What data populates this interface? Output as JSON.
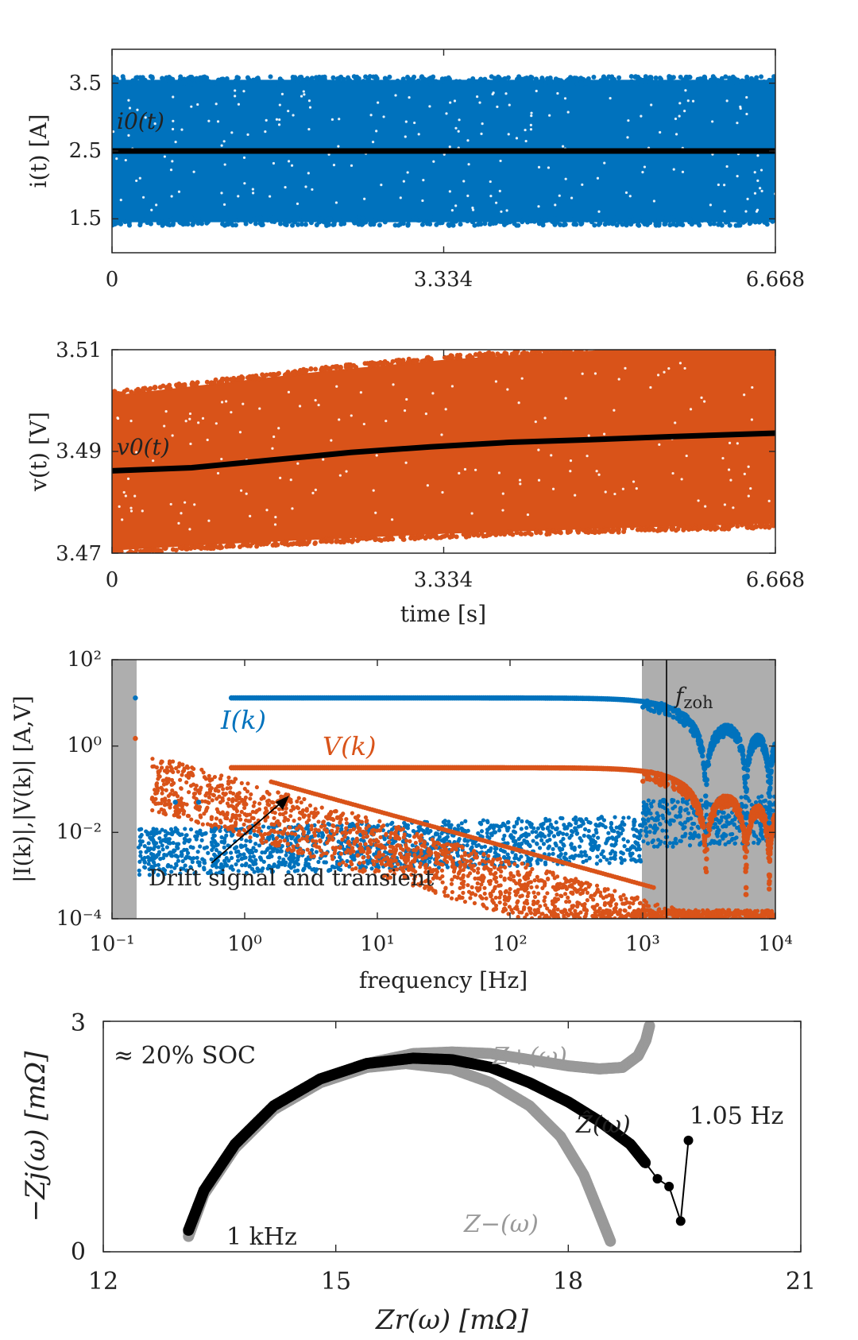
{
  "colors": {
    "current": "#0072BD",
    "voltage": "#D95319",
    "mean": "#000000",
    "bound": "#999999",
    "shade": "#9a9a9a"
  },
  "chart_data": [
    {
      "type": "scatter",
      "title": "",
      "ylabel": "i(t) [A]",
      "xlabel": "",
      "xlim": [
        0,
        6.668
      ],
      "ylim": [
        1.0,
        4.0
      ],
      "xticks": [
        "0",
        "3.334",
        "6.668"
      ],
      "yticks": [
        "1.5",
        "2.5",
        "3.5"
      ],
      "series": [
        {
          "name": "i(t)",
          "band": [
            1.4,
            3.6
          ]
        },
        {
          "name": "i0(t)",
          "value": 2.5
        }
      ],
      "annotations": [
        "i0(t)"
      ]
    },
    {
      "type": "scatter",
      "ylabel": "v(t) [V]",
      "xlabel": "time [s]",
      "xlim": [
        0,
        6.668
      ],
      "ylim": [
        3.47,
        3.51
      ],
      "xticks": [
        "0",
        "3.334",
        "6.668"
      ],
      "yticks": [
        "3.47",
        "3.49",
        "3.51"
      ],
      "series": [
        {
          "name": "v(t)",
          "lower": [
            3.4705,
            3.4718,
            3.4728,
            3.4738,
            3.4745,
            3.4752,
            3.4758
          ],
          "upper": [
            3.501,
            3.5035,
            3.506,
            3.508,
            3.5095,
            3.5105,
            3.5105
          ]
        },
        {
          "name": "v0(t)",
          "x": [
            0,
            0.8,
            1.6,
            2.4,
            3.2,
            4.0,
            4.8,
            5.6,
            6.668
          ],
          "y": [
            3.4862,
            3.4868,
            3.4883,
            3.4898,
            3.4909,
            3.4918,
            3.4923,
            3.4929,
            3.4936
          ]
        }
      ],
      "annotations": [
        "v0(t)"
      ]
    },
    {
      "type": "scatter",
      "ylabel": "|I(k)|,|V(k)| [A,V]",
      "xlabel": "frequency [Hz]",
      "xscale": "log",
      "yscale": "log",
      "xlim": [
        0.1,
        10000
      ],
      "ylim": [
        0.0001,
        100
      ],
      "xticks": [
        "10⁻¹",
        "10⁰",
        "10¹",
        "10²",
        "10³",
        "10⁴"
      ],
      "yticks": [
        "10⁻⁴",
        "10⁻²",
        "10⁰",
        "10²"
      ],
      "shaded_regions": [
        [
          0.1,
          0.15
        ],
        [
          1000,
          10000
        ]
      ],
      "vline": 1500,
      "series": [
        {
          "name": "I(k)",
          "excited_level": 13
        },
        {
          "name": "V(k)",
          "excited_level": 0.3
        }
      ],
      "labels": {
        "I": "I(k)",
        "V": "V(k)",
        "fzoh": "f",
        "fzoh_sub": "zoh"
      },
      "annotation": "Drift signal and transient"
    },
    {
      "type": "scatter",
      "xlabel": "Zr(ω) [mΩ]",
      "ylabel": "−Zj(ω) [mΩ]",
      "xlim": [
        12,
        21
      ],
      "ylim": [
        0,
        3
      ],
      "xticks": [
        "12",
        "15",
        "18",
        "21"
      ],
      "yticks": [
        "0",
        "3"
      ],
      "series": [
        {
          "name": "Z+(ω)",
          "x": [
            13.1,
            13.3,
            13.7,
            14.2,
            14.8,
            15.4,
            16.0,
            16.5,
            17.0,
            17.5,
            18.0,
            18.4,
            18.7,
            18.9,
            19.0,
            19.05
          ],
          "y": [
            0.25,
            0.8,
            1.4,
            1.9,
            2.25,
            2.45,
            2.58,
            2.6,
            2.58,
            2.5,
            2.42,
            2.38,
            2.4,
            2.55,
            2.75,
            2.95
          ]
        },
        {
          "name": "Z−(ω)",
          "x": [
            13.1,
            13.3,
            13.7,
            14.2,
            14.8,
            15.4,
            15.9,
            16.5,
            17.0,
            17.5,
            17.9,
            18.2,
            18.4,
            18.55
          ],
          "y": [
            0.2,
            0.75,
            1.35,
            1.85,
            2.2,
            2.4,
            2.45,
            2.38,
            2.2,
            1.9,
            1.5,
            1.0,
            0.5,
            0.12
          ]
        },
        {
          "name": "Ẑ(ω)",
          "x": [
            13.1,
            13.3,
            13.7,
            14.2,
            14.8,
            15.4,
            16.0,
            16.5,
            17.0,
            17.5,
            18.0,
            18.4,
            18.8,
            19.0,
            19.15,
            19.3,
            19.45,
            19.55
          ],
          "y": [
            0.28,
            0.8,
            1.4,
            1.9,
            2.25,
            2.45,
            2.52,
            2.5,
            2.4,
            2.2,
            1.95,
            1.7,
            1.4,
            1.15,
            0.95,
            0.85,
            0.4,
            1.45
          ]
        }
      ],
      "labels": {
        "soc": "≈ 20% SOC",
        "zplus": "Z+(ω)",
        "zminus": "Z−(ω)",
        "zhat": "Ẑ(ω)",
        "f_low": "1.05 Hz",
        "f_high": "1 kHz"
      }
    }
  ]
}
